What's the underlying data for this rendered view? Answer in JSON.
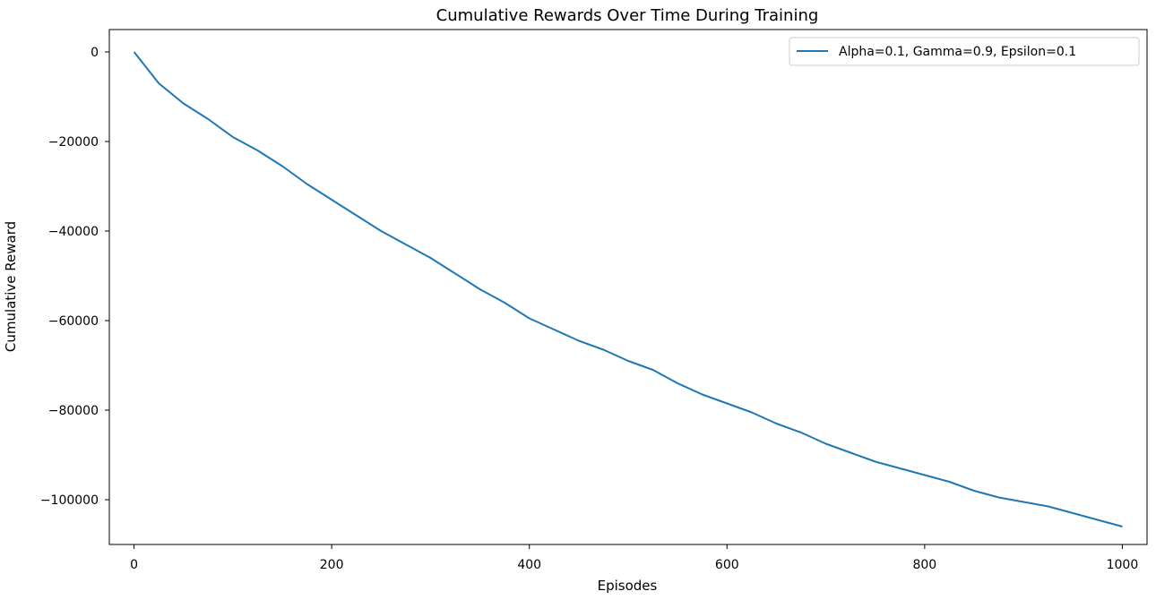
{
  "chart_data": {
    "type": "line",
    "title": "Cumulative Rewards Over Time During Training",
    "xlabel": "Episodes",
    "ylabel": "Cumulative Reward",
    "xlim": [
      -25,
      1025
    ],
    "ylim": [
      -110000,
      5000
    ],
    "xticks": [
      0,
      200,
      400,
      600,
      800,
      1000
    ],
    "xtick_labels": [
      "0",
      "200",
      "400",
      "600",
      "800",
      "1000"
    ],
    "yticks": [
      0,
      -20000,
      -40000,
      -60000,
      -80000,
      -100000
    ],
    "ytick_labels": [
      "0",
      "−20000",
      "−40000",
      "−60000",
      "−80000",
      "−100000"
    ],
    "grid": false,
    "legend_position": "top-right",
    "series": [
      {
        "name": "Alpha=0.1, Gamma=0.9, Epsilon=0.1",
        "color": "#1f77b4",
        "x": [
          0,
          25,
          50,
          75,
          100,
          125,
          150,
          175,
          200,
          225,
          250,
          275,
          300,
          325,
          350,
          375,
          400,
          425,
          450,
          475,
          500,
          525,
          550,
          575,
          600,
          625,
          650,
          675,
          700,
          725,
          750,
          775,
          800,
          825,
          850,
          875,
          900,
          925,
          950,
          975,
          1000
        ],
        "y": [
          0,
          -7000,
          -11500,
          -15000,
          -19000,
          -22000,
          -25500,
          -29500,
          -33000,
          -36500,
          -40000,
          -43000,
          -46000,
          -49500,
          -53000,
          -56000,
          -59500,
          -62000,
          -64500,
          -66500,
          -69000,
          -71000,
          -74000,
          -76500,
          -78500,
          -80500,
          -83000,
          -85000,
          -87500,
          -89500,
          -91500,
          -93000,
          -94500,
          -96000,
          -98000,
          -99500,
          -100500,
          -101500,
          -103000,
          -104500,
          -106000
        ]
      }
    ]
  }
}
